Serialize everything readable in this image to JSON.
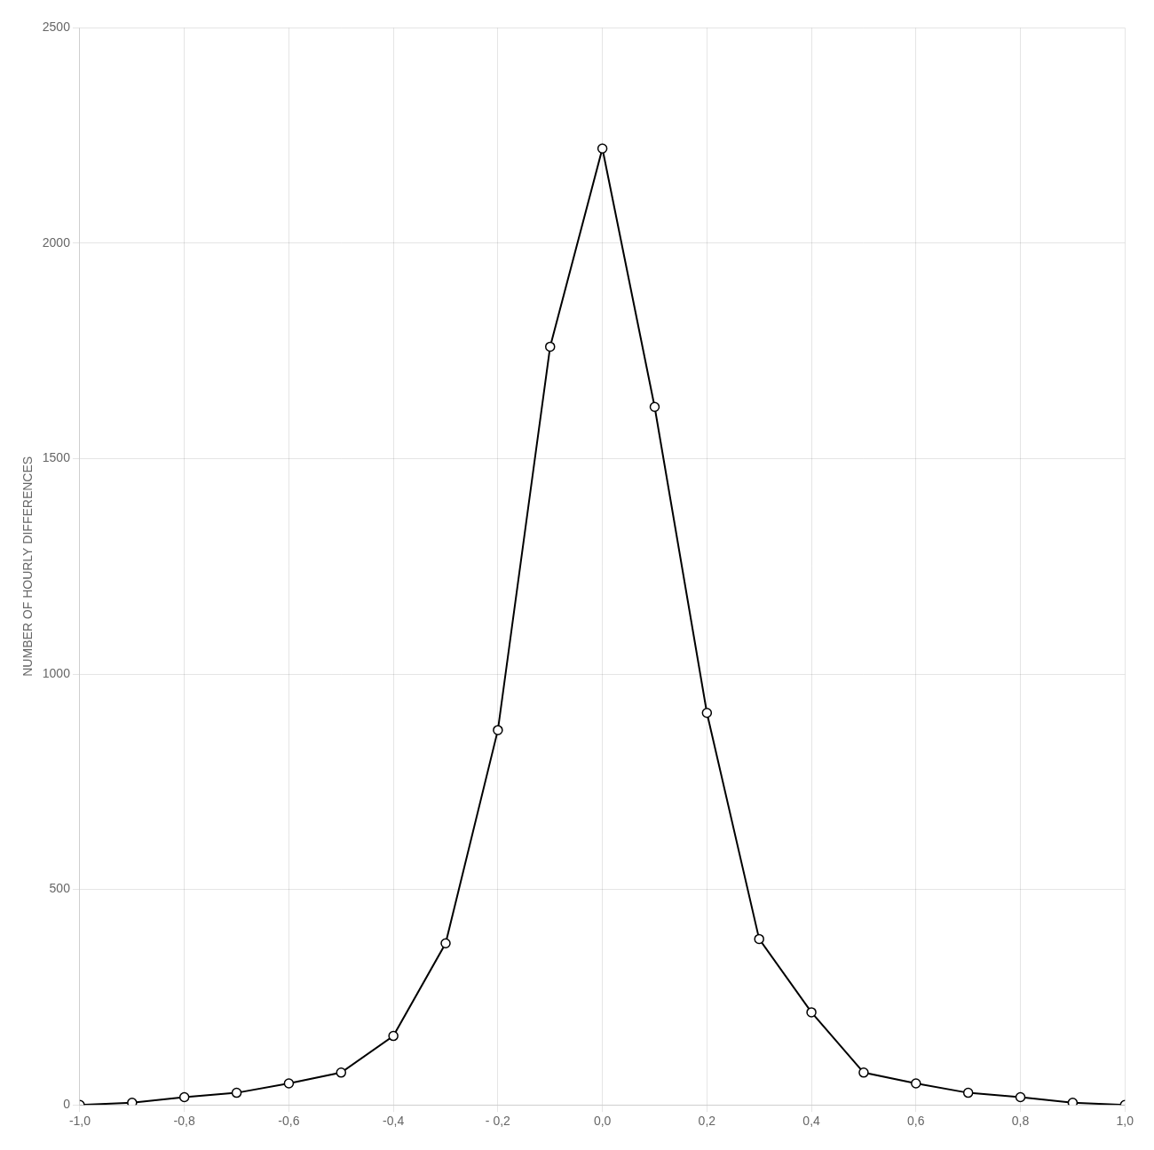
{
  "chart_data": {
    "type": "line",
    "x": [
      -1.0,
      -0.9,
      -0.8,
      -0.7,
      -0.6,
      -0.5,
      -0.4,
      -0.3,
      -0.2,
      -0.1,
      0.0,
      0.1,
      0.2,
      0.3,
      0.4,
      0.5,
      0.6,
      0.7,
      0.8,
      0.9,
      1.0
    ],
    "values": [
      0,
      5,
      18,
      28,
      50,
      75,
      160,
      375,
      870,
      1760,
      2220,
      1620,
      910,
      385,
      215,
      75,
      50,
      28,
      18,
      5,
      0
    ],
    "y_label": "NUMBER OF HOURLY DIFFERENCES",
    "xlim": [
      -1.0,
      1.0
    ],
    "ylim": [
      0,
      2500
    ],
    "xticks": [
      {
        "value": -1.0,
        "label": "-1,0"
      },
      {
        "value": -0.8,
        "label": "-0,8"
      },
      {
        "value": -0.6,
        "label": "-0,6"
      },
      {
        "value": -0.4,
        "label": "-0,4"
      },
      {
        "value": -0.2,
        "label": "- 0,2"
      },
      {
        "value": 0.0,
        "label": "0,0"
      },
      {
        "value": 0.2,
        "label": "0,2"
      },
      {
        "value": 0.4,
        "label": "0,4"
      },
      {
        "value": 0.6,
        "label": "0,6"
      },
      {
        "value": 0.8,
        "label": "0,8"
      },
      {
        "value": 1.0,
        "label": "1,0"
      }
    ],
    "yticks": [
      0,
      500,
      1000,
      1500,
      2000,
      2500
    ],
    "color": "#000000",
    "marker": "circle",
    "grid": true
  }
}
